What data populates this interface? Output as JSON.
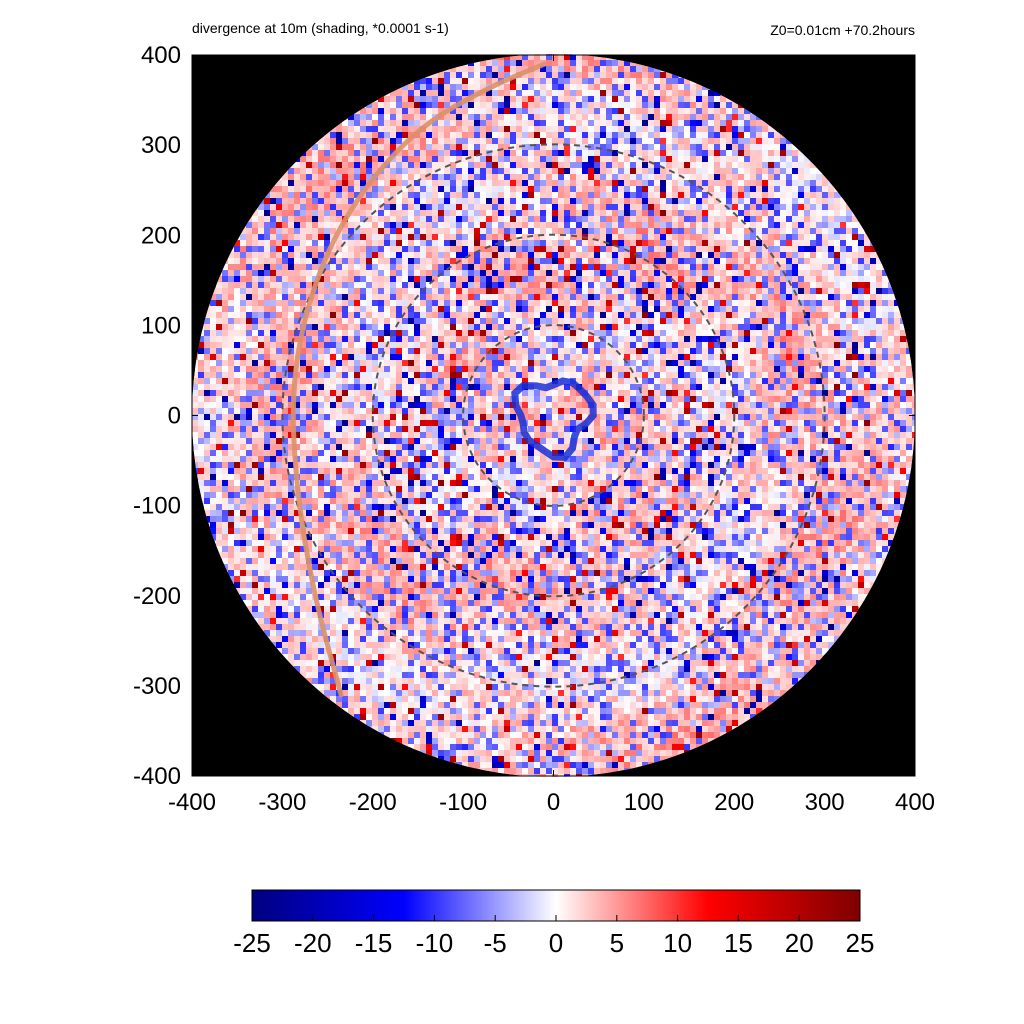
{
  "chart_data": {
    "type": "heatmap",
    "title": "divergence at 10m (shading, *0.0001 s-1)",
    "subtitle": "Z0=0.01cm  +70.2hours",
    "xlim": [
      -400,
      400
    ],
    "ylim": [
      -400,
      400
    ],
    "x_ticks": [
      "-400",
      "-300",
      "-200",
      "-100",
      "0",
      "100",
      "200",
      "300",
      "400"
    ],
    "y_ticks": [
      "400",
      "300",
      "200",
      "100",
      "0",
      "-100",
      "-200",
      "-300",
      "-400"
    ],
    "domain_radius": 400,
    "range_rings": [
      100,
      200,
      300
    ],
    "colorbar": {
      "range": [
        -25,
        25
      ],
      "ticks": [
        "-25",
        "-20",
        "-15",
        "-10",
        "-5",
        "0",
        "5",
        "10",
        "15",
        "20",
        "25"
      ],
      "colors": [
        "#00007f",
        "#0000ff",
        "#ffffff",
        "#ff0000",
        "#7f0000"
      ]
    },
    "outside_color": "#000000",
    "track": {
      "color": "#d9916a",
      "points": [
        [
          -10,
          390
        ],
        [
          -70,
          365
        ],
        [
          -150,
          320
        ],
        [
          -220,
          240
        ],
        [
          -265,
          150
        ],
        [
          -290,
          40
        ],
        [
          -285,
          -80
        ],
        [
          -265,
          -200
        ],
        [
          -235,
          -310
        ]
      ]
    },
    "eyewall_color": "#1a2fd6"
  }
}
